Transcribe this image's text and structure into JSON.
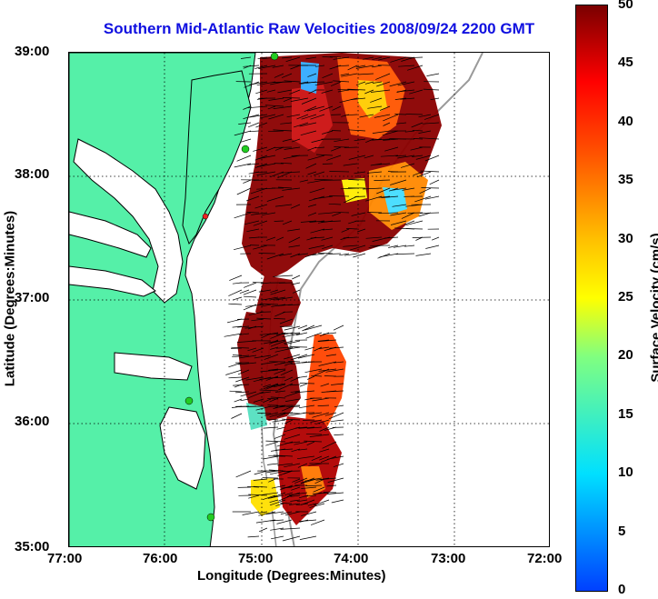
{
  "title": "Southern Mid-Atlantic Raw Velocities 2008/09/24 2200 GMT",
  "xlabel": "Longitude (Degrees:Minutes)",
  "ylabel": "Latitude (Degrees:Minutes)",
  "x_ticks": [
    "77:00",
    "76:00",
    "75:00",
    "74:00",
    "73:00",
    "72:00"
  ],
  "y_ticks": [
    "39:00",
    "38:00",
    "37:00",
    "36:00",
    "35:00"
  ],
  "colorbar": {
    "label": "Surface Velocity (cm/s)",
    "ticks": [
      "50",
      "45",
      "40",
      "35",
      "30",
      "25",
      "20",
      "15",
      "10",
      "5",
      "0"
    ],
    "range": [
      0,
      50
    ]
  },
  "colors": {
    "land": "#55f0a8",
    "title": "#1010e0",
    "coast": "#000000",
    "shelf": "#9a9a9a",
    "station": "#22cc22",
    "station_alt": "#ee2222"
  },
  "map": {
    "lon_range": [
      -77,
      -72
    ],
    "lat_range": [
      35,
      39
    ],
    "grid": true
  }
}
